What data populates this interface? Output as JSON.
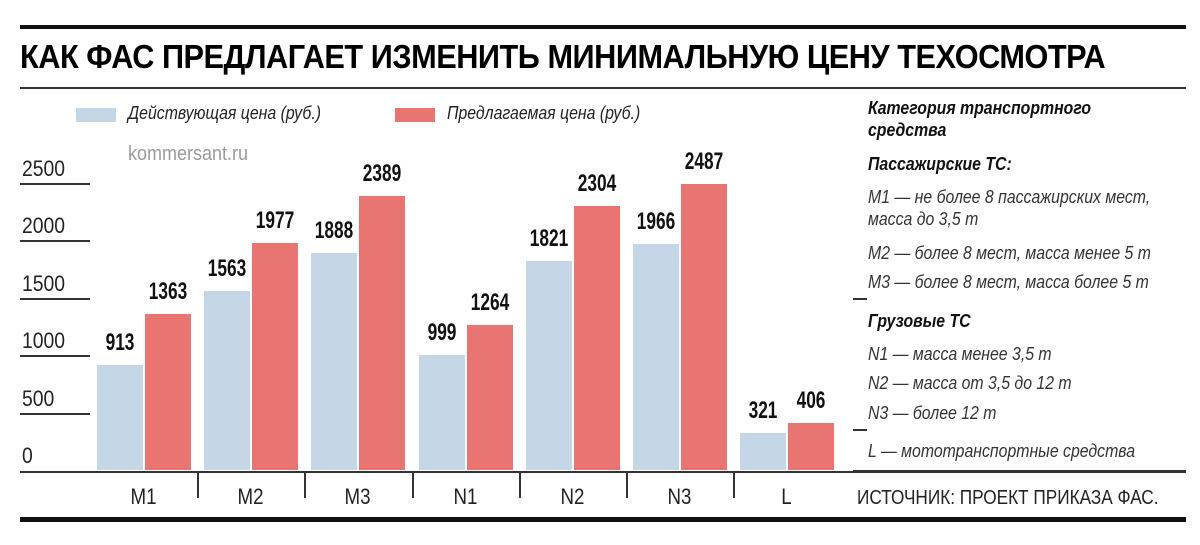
{
  "header": {
    "title": "КАК ФАС ПРЕДЛАГАЕТ ИЗМЕНИТЬ МИНИМАЛЬНУЮ ЦЕНУ ТЕХОСМОТРА"
  },
  "legend": {
    "current_label": "Действующая цена (руб.)",
    "proposed_label": "Предлагаемая цена (руб.)",
    "current_color": "#c5d6e6",
    "proposed_color": "#e87572"
  },
  "watermark": "kommersant.ru",
  "y_ticks": [
    "2500",
    "2000",
    "1500",
    "1000",
    "500",
    "0"
  ],
  "categories": [
    "M1",
    "M2",
    "M3",
    "N1",
    "N2",
    "N3",
    "L"
  ],
  "current_values_text": [
    "913",
    "1563",
    "1888",
    "999",
    "1821",
    "1966",
    "321"
  ],
  "proposed_values_text": [
    "1363",
    "1977",
    "2389",
    "1264",
    "2304",
    "2487",
    "406"
  ],
  "source": "ИСТОЧНИК: ПРОЕКТ ПРИКАЗА ФАС.",
  "sidebar": {
    "heading": "Категория транспортного средства",
    "heading_line1": "Категория транспортного",
    "heading_line2": "средства",
    "passenger_heading": "Пассажирские ТС:",
    "m1_line1": "M1 — не более 8 пассажирских мест,",
    "m1_line2": "масса до 3,5 т",
    "m2": "M2 — более 8 мест, масса менее 5 т",
    "m3": "M3 — более 8 мест, масса более 5 т",
    "cargo_heading": "Грузовые ТС",
    "n1": "N1 — масса менее 3,5 т",
    "n2": "N2 — масса от 3,5 до 12 т",
    "n3": "N3 — более 12 т",
    "l": "L — мототранспортные средства"
  },
  "chart_data": {
    "type": "bar",
    "title": "КАК ФАС ПРЕДЛАГАЕТ ИЗМЕНИТЬ МИНИМАЛЬНУЮ ЦЕНУ ТЕХОСМОТРА",
    "categories": [
      "M1",
      "M2",
      "M3",
      "N1",
      "N2",
      "N3",
      "L"
    ],
    "series": [
      {
        "name": "Действующая цена (руб.)",
        "color": "#c5d6e6",
        "values": [
          913,
          1563,
          1888,
          999,
          1821,
          1966,
          321
        ]
      },
      {
        "name": "Предлагаемая цена (руб.)",
        "color": "#e87572",
        "values": [
          1363,
          1977,
          2389,
          1264,
          2304,
          2487,
          406
        ]
      }
    ],
    "xlabel": "Категория транспортного средства",
    "ylabel": "руб.",
    "ylim": [
      0,
      2500
    ],
    "yticks": [
      0,
      500,
      1000,
      1500,
      2000,
      2500
    ],
    "grid": false,
    "legend_position": "top",
    "annotations": [
      "kommersant.ru",
      "ИСТОЧНИК: ПРОЕКТ ПРИКАЗА ФАС."
    ]
  }
}
